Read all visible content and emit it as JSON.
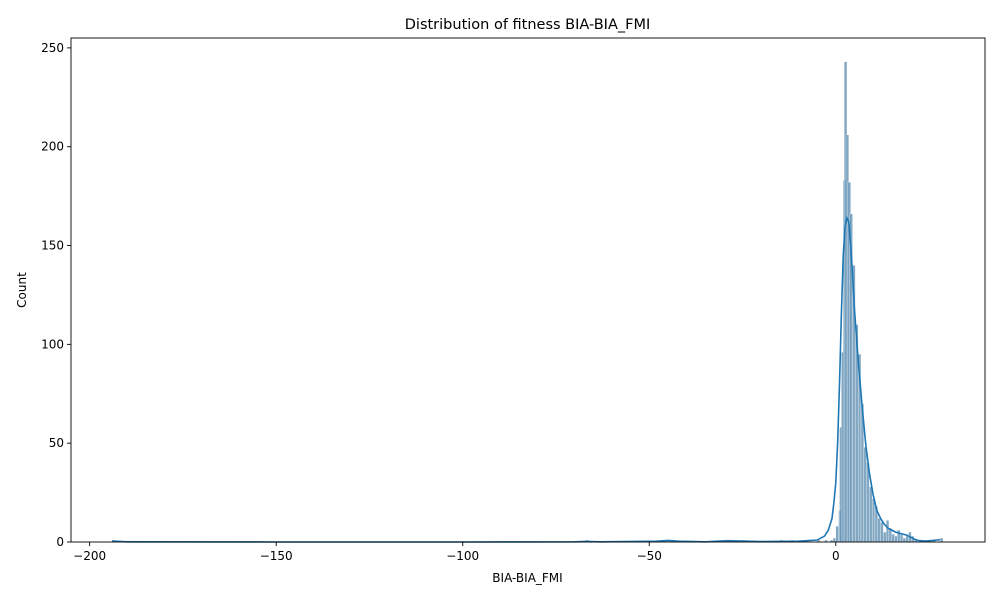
{
  "chart_data": {
    "type": "histogram",
    "title": "Distribution of fitness BIA-BIA_FMI",
    "xlabel": "BIA-BIA_FMI",
    "ylabel": "Count",
    "xlim": [
      -205,
      40
    ],
    "ylim": [
      0,
      255
    ],
    "x_ticks": [
      -200,
      -150,
      -100,
      -50,
      0
    ],
    "x_tick_labels": [
      "−200",
      "−150",
      "−100",
      "−50",
      "0"
    ],
    "y_ticks": [
      0,
      50,
      100,
      150,
      200,
      250
    ],
    "y_tick_labels": [
      "0",
      "50",
      "100",
      "150",
      "200",
      "250"
    ],
    "grid": false,
    "bar_color": "#5f8fb4",
    "kde_color": "#1f77b4",
    "bin_width": 0.75,
    "bins": [
      {
        "x": -194.0,
        "count": 1
      },
      {
        "x": -67.0,
        "count": 1
      },
      {
        "x": -45.0,
        "count": 1
      },
      {
        "x": -29.0,
        "count": 1
      },
      {
        "x": -25.0,
        "count": 1
      },
      {
        "x": -15.0,
        "count": 1
      },
      {
        "x": -12.0,
        "count": 1
      },
      {
        "x": -8.0,
        "count": 1
      },
      {
        "x": -5.0,
        "count": 1
      },
      {
        "x": -3.0,
        "count": 1
      },
      {
        "x": -1.5,
        "count": 1
      },
      {
        "x": -0.75,
        "count": 2
      },
      {
        "x": 0.0,
        "count": 8
      },
      {
        "x": 0.75,
        "count": 16
      },
      {
        "x": 1.0,
        "count": 58
      },
      {
        "x": 1.5,
        "count": 96
      },
      {
        "x": 2.0,
        "count": 183
      },
      {
        "x": 2.25,
        "count": 243
      },
      {
        "x": 2.75,
        "count": 206
      },
      {
        "x": 3.25,
        "count": 182
      },
      {
        "x": 3.75,
        "count": 166
      },
      {
        "x": 4.5,
        "count": 140
      },
      {
        "x": 5.25,
        "count": 110
      },
      {
        "x": 6.0,
        "count": 95
      },
      {
        "x": 6.75,
        "count": 70
      },
      {
        "x": 7.5,
        "count": 48
      },
      {
        "x": 8.25,
        "count": 40
      },
      {
        "x": 9.0,
        "count": 28
      },
      {
        "x": 9.75,
        "count": 22
      },
      {
        "x": 10.5,
        "count": 18
      },
      {
        "x": 11.25,
        "count": 12
      },
      {
        "x": 12.0,
        "count": 10
      },
      {
        "x": 12.75,
        "count": 5
      },
      {
        "x": 13.5,
        "count": 11
      },
      {
        "x": 14.25,
        "count": 7
      },
      {
        "x": 15.0,
        "count": 4
      },
      {
        "x": 15.75,
        "count": 3
      },
      {
        "x": 16.5,
        "count": 6
      },
      {
        "x": 17.25,
        "count": 4
      },
      {
        "x": 18.0,
        "count": 2
      },
      {
        "x": 18.75,
        "count": 3
      },
      {
        "x": 19.5,
        "count": 5
      },
      {
        "x": 20.25,
        "count": 3
      },
      {
        "x": 21.0,
        "count": 1
      },
      {
        "x": 24.0,
        "count": 1
      },
      {
        "x": 26.0,
        "count": 1
      },
      {
        "x": 28.0,
        "count": 2
      }
    ],
    "kde": [
      {
        "x": -194,
        "y": 0.5
      },
      {
        "x": -190,
        "y": 0.1
      },
      {
        "x": -150,
        "y": 0
      },
      {
        "x": -100,
        "y": 0
      },
      {
        "x": -70,
        "y": 0.1
      },
      {
        "x": -67,
        "y": 0.3
      },
      {
        "x": -63,
        "y": 0.1
      },
      {
        "x": -48,
        "y": 0.4
      },
      {
        "x": -45,
        "y": 0.8
      },
      {
        "x": -42,
        "y": 0.4
      },
      {
        "x": -35,
        "y": 0.1
      },
      {
        "x": -29,
        "y": 0.7
      },
      {
        "x": -25,
        "y": 0.5
      },
      {
        "x": -20,
        "y": 0.2
      },
      {
        "x": -10,
        "y": 0.4
      },
      {
        "x": -5,
        "y": 1
      },
      {
        "x": -3,
        "y": 3
      },
      {
        "x": -2,
        "y": 6
      },
      {
        "x": -1,
        "y": 12
      },
      {
        "x": -0.5,
        "y": 20
      },
      {
        "x": 0,
        "y": 30
      },
      {
        "x": 0.5,
        "y": 50
      },
      {
        "x": 1,
        "y": 80
      },
      {
        "x": 1.5,
        "y": 115
      },
      {
        "x": 2,
        "y": 145
      },
      {
        "x": 2.5,
        "y": 160
      },
      {
        "x": 3,
        "y": 164
      },
      {
        "x": 3.5,
        "y": 162
      },
      {
        "x": 4,
        "y": 150
      },
      {
        "x": 4.5,
        "y": 135
      },
      {
        "x": 5,
        "y": 118
      },
      {
        "x": 6,
        "y": 92
      },
      {
        "x": 7,
        "y": 70
      },
      {
        "x": 8,
        "y": 50
      },
      {
        "x": 9,
        "y": 35
      },
      {
        "x": 10,
        "y": 24
      },
      {
        "x": 11,
        "y": 16
      },
      {
        "x": 12,
        "y": 12
      },
      {
        "x": 13,
        "y": 9
      },
      {
        "x": 14,
        "y": 7
      },
      {
        "x": 15,
        "y": 6
      },
      {
        "x": 16,
        "y": 5
      },
      {
        "x": 17,
        "y": 4.5
      },
      {
        "x": 18,
        "y": 4
      },
      {
        "x": 19,
        "y": 3.5
      },
      {
        "x": 20,
        "y": 2.5
      },
      {
        "x": 21,
        "y": 1.5
      },
      {
        "x": 22,
        "y": 0.8
      },
      {
        "x": 24,
        "y": 0.5
      },
      {
        "x": 26,
        "y": 0.8
      },
      {
        "x": 28,
        "y": 1.2
      }
    ]
  }
}
